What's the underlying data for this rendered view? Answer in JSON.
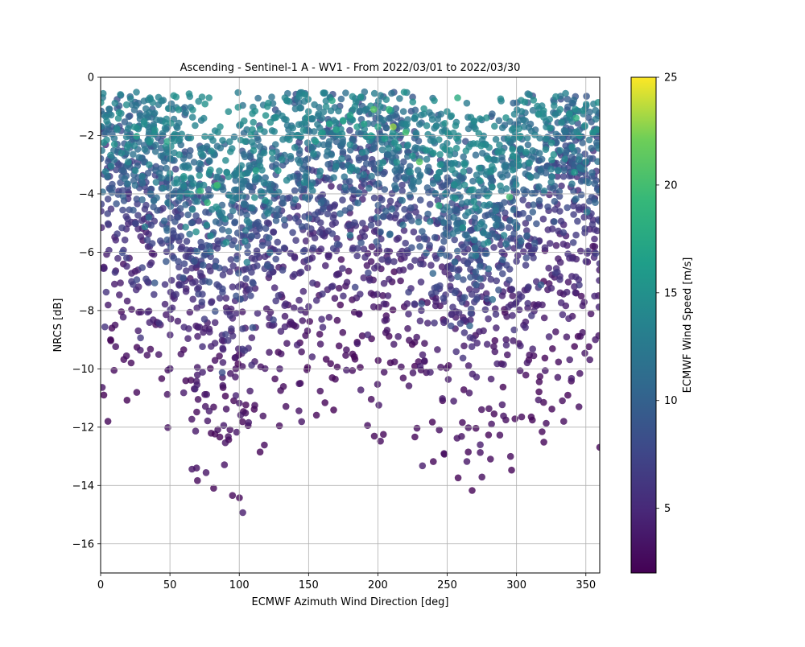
{
  "chart_data": {
    "type": "scatter",
    "title": "Ascending - Sentinel-1 A - WV1 - From 2022/03/01 to 2022/03/30",
    "xlabel": "ECMWF Azimuth Wind Direction [deg]",
    "ylabel": "NRCS [dB]",
    "xlim": [
      0,
      360
    ],
    "ylim": [
      -17,
      0
    ],
    "x_ticks": [
      0,
      50,
      100,
      150,
      200,
      250,
      300,
      350
    ],
    "y_ticks": [
      -16,
      -14,
      -12,
      -10,
      -8,
      -6,
      -4,
      -2,
      0
    ],
    "grid": true,
    "point_alpha": 0.8,
    "colorbar": {
      "label": "ECMWF Wind Speed [m/s]",
      "colormap": "viridis",
      "range": [
        2,
        25
      ],
      "ticks": [
        5,
        10,
        15,
        20,
        25
      ]
    },
    "points": [
      [
        12,
        -1.8,
        14
      ],
      [
        167,
        -0.8,
        17
      ],
      [
        197,
        -1.1,
        21
      ],
      [
        208,
        -1.1,
        19
      ],
      [
        211,
        -1.7,
        23
      ],
      [
        220,
        -1.9,
        20
      ],
      [
        230,
        -2.9,
        21
      ],
      [
        343,
        -1.4,
        18
      ],
      [
        48,
        -2.2,
        17
      ],
      [
        84,
        -3.7,
        20
      ],
      [
        72,
        -3.9,
        19
      ],
      [
        77,
        -4.3,
        19
      ],
      [
        112,
        -3.2,
        17
      ],
      [
        128,
        -3.2,
        16
      ],
      [
        244,
        -4.4,
        18
      ],
      [
        295,
        -4.1,
        20
      ],
      [
        5,
        -3.4,
        12
      ],
      [
        10,
        -2.3,
        15
      ],
      [
        15,
        -2.6,
        14
      ],
      [
        20,
        -2.9,
        14
      ],
      [
        25,
        -3.2,
        14
      ],
      [
        30,
        -3.4,
        13
      ],
      [
        35,
        -3.0,
        14
      ],
      [
        40,
        -3.6,
        13
      ],
      [
        45,
        -3.8,
        13
      ],
      [
        50,
        -3.3,
        14
      ],
      [
        55,
        -3.5,
        14
      ],
      [
        60,
        -3.4,
        15
      ],
      [
        65,
        -4.0,
        14
      ],
      [
        155,
        -2.2,
        16
      ],
      [
        160,
        -1.9,
        16
      ],
      [
        165,
        -1.6,
        17
      ],
      [
        170,
        -1.8,
        17
      ],
      [
        175,
        -1.5,
        17
      ],
      [
        180,
        -1.3,
        17
      ],
      [
        185,
        -1.7,
        16
      ],
      [
        190,
        -1.6,
        17
      ],
      [
        195,
        -2.0,
        16
      ],
      [
        200,
        -1.7,
        17
      ],
      [
        205,
        -2.1,
        16
      ],
      [
        215,
        -2.4,
        15
      ],
      [
        225,
        -2.7,
        15
      ],
      [
        235,
        -2.5,
        15
      ],
      [
        240,
        -2.6,
        15
      ],
      [
        245,
        -3.0,
        15
      ],
      [
        330,
        -3.2,
        13
      ],
      [
        335,
        -2.8,
        14
      ],
      [
        340,
        -2.4,
        14
      ],
      [
        345,
        -2.0,
        14
      ],
      [
        350,
        -2.9,
        13
      ],
      [
        355,
        -1.9,
        15
      ],
      [
        358,
        -1.8,
        15
      ],
      [
        320,
        -3.9,
        13
      ],
      [
        325,
        -3.6,
        13
      ]
    ]
  }
}
